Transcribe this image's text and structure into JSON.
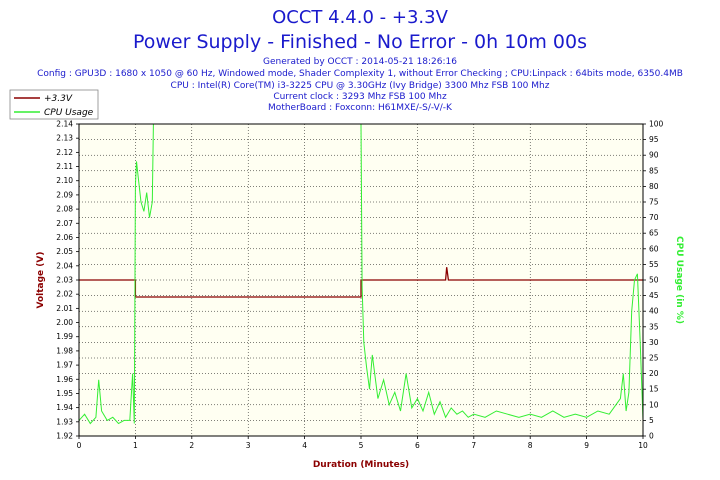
{
  "header": {
    "title": "OCCT 4.4.0 - +3.3V",
    "subtitle": "Power Supply - Finished - No Error - 0h 10m 00s",
    "info_lines": [
      "Generated by OCCT : 2014-05-21 18:26:16",
      "Config : GPU3D : 1680 x 1050 @ 60 Hz, Windowed mode, Shader Complexity 1, without Error Checking ; CPU:Linpack : 64bits mode, 6350.4MB",
      "CPU : Intel(R) Core(TM) i3-3225 CPU @ 3.30GHz (Ivy Bridge) 3300 Mhz FSB 100 Mhz",
      "Current clock : 3293 Mhz FSB 100 Mhz",
      "MotherBoard : Foxconn: H61MXE/-S/-V/-K"
    ]
  },
  "colors": {
    "voltage": "#8b0000",
    "cpu": "#33ee33",
    "plot_bg": "#fffff2",
    "grid": "#000000",
    "title": "#1a1acc",
    "xlabel": "#8b0000"
  },
  "chart_data": {
    "type": "line",
    "title": "OCCT 4.4.0 - +3.3V",
    "xlabel": "Duration (Minutes)",
    "ylabel": "Voltage (V)",
    "y2label": "CPU Usage (in %)",
    "xlim": [
      0,
      10
    ],
    "ylim": [
      1.92,
      2.14
    ],
    "y2lim": [
      0,
      100
    ],
    "xticks": [
      "0",
      "1",
      "2",
      "3",
      "4",
      "5",
      "6",
      "7",
      "8",
      "9",
      "10"
    ],
    "yticks": [
      "1.92",
      "1.93",
      "1.94",
      "1.95",
      "1.96",
      "1.97",
      "1.98",
      "1.99",
      "2.00",
      "2.01",
      "2.02",
      "2.03",
      "2.04",
      "2.05",
      "2.06",
      "2.07",
      "2.08",
      "2.09",
      "2.10",
      "2.11",
      "2.12",
      "2.13",
      "2.14"
    ],
    "y2ticks": [
      "0",
      "5",
      "10",
      "15",
      "20",
      "25",
      "30",
      "35",
      "40",
      "45",
      "50",
      "55",
      "60",
      "65",
      "70",
      "75",
      "80",
      "85",
      "90",
      "95",
      "100"
    ],
    "legend": {
      "position": "top-left",
      "entries": [
        "+3.3V",
        "CPU Usage"
      ]
    },
    "series": [
      {
        "name": "+3.3V",
        "axis": "left",
        "x": [
          0,
          1.0,
          1.0,
          5.0,
          5.0,
          6.5,
          6.52,
          6.55,
          6.58,
          10
        ],
        "y": [
          2.03,
          2.03,
          2.018,
          2.018,
          2.03,
          2.03,
          2.039,
          2.03,
          2.03,
          2.03
        ]
      },
      {
        "name": "CPU Usage",
        "axis": "right",
        "x": [
          0,
          0.1,
          0.2,
          0.3,
          0.35,
          0.4,
          0.5,
          0.6,
          0.7,
          0.8,
          0.9,
          0.95,
          0.98,
          1.0,
          1.02,
          1.05,
          1.1,
          1.15,
          1.2,
          1.25,
          1.3,
          1.32,
          1.35,
          1.5,
          2,
          3,
          4,
          4.9,
          4.95,
          5.0,
          5.02,
          5.05,
          5.1,
          5.15,
          5.2,
          5.3,
          5.4,
          5.5,
          5.6,
          5.7,
          5.8,
          5.9,
          6.0,
          6.1,
          6.2,
          6.3,
          6.4,
          6.5,
          6.6,
          6.7,
          6.8,
          6.9,
          7.0,
          7.2,
          7.4,
          7.6,
          7.8,
          8.0,
          8.2,
          8.4,
          8.6,
          8.8,
          9.0,
          9.2,
          9.4,
          9.6,
          9.65,
          9.7,
          9.75,
          9.8,
          9.85,
          9.9,
          9.95,
          10
        ],
        "y": [
          5,
          7,
          4,
          6,
          18,
          8,
          5,
          6,
          4,
          5,
          5,
          20,
          4,
          80,
          88,
          83,
          75,
          72,
          78,
          70,
          75,
          100,
          100,
          100,
          100,
          100,
          100,
          100,
          100,
          100,
          48,
          30,
          22,
          15,
          26,
          12,
          18,
          10,
          14,
          8,
          20,
          9,
          12,
          8,
          14,
          7,
          11,
          6,
          9,
          7,
          8,
          6,
          7,
          6,
          8,
          7,
          6,
          7,
          6,
          8,
          6,
          7,
          6,
          8,
          7,
          12,
          20,
          8,
          14,
          40,
          50,
          52,
          30,
          5
        ]
      }
    ]
  }
}
